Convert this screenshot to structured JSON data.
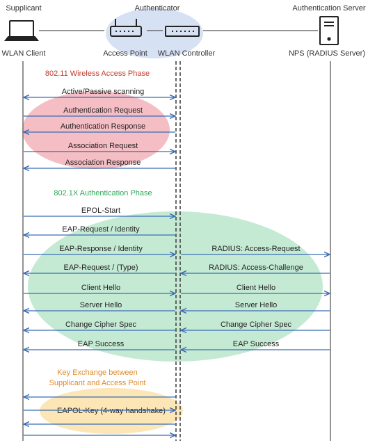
{
  "header": {
    "supplicant": "Supplicant",
    "authenticator": "Authenticator",
    "auth_server": "Authentication Server"
  },
  "devices": {
    "client": "WLAN Client",
    "ap": "Access Point",
    "controller": "WLAN Controller",
    "nps": "NPS (RADIUS Server)"
  },
  "colors": {
    "arrow": "#3b6db3",
    "phase1_title": "#c0392b",
    "phase1_fill": "#ef9aa4",
    "phase2_title": "#2ea85a",
    "phase2_fill": "#9fdcb7",
    "phase3_title": "#e08a2a",
    "phase3_fill": "#fbdc96",
    "auth_fill": "#c9d7f0"
  },
  "phases": [
    {
      "title": "802.11 Wireless Access Phase",
      "messages": [
        {
          "label": "Active/Passive scanning",
          "dir": "both"
        },
        {
          "label": "Authentication Request",
          "dir": "right"
        },
        {
          "label": "Authentication Response",
          "dir": "left"
        },
        {
          "label": "Association Request",
          "dir": "right"
        },
        {
          "label": "Association Response",
          "dir": "left"
        }
      ]
    },
    {
      "title": "802.1X Authentication Phase",
      "messages": [
        {
          "label": "EPOL-Start",
          "dir": "right",
          "right_label": "",
          "right_dir": ""
        },
        {
          "label": "EAP-Request / Identity",
          "dir": "left",
          "right_label": "",
          "right_dir": ""
        },
        {
          "label": "EAP-Response / Identity",
          "dir": "right",
          "right_label": "RADIUS: Access-Request",
          "right_dir": "right"
        },
        {
          "label": "EAP-Request / (Type)",
          "dir": "left",
          "right_label": "RADIUS: Access-Challenge",
          "right_dir": "left"
        },
        {
          "label": "Client Hello",
          "dir": "right",
          "right_label": "Client Hello",
          "right_dir": "right"
        },
        {
          "label": "Server Hello",
          "dir": "left",
          "right_label": "Server Hello",
          "right_dir": "left"
        },
        {
          "label": "Change Cipher Spec",
          "dir": "left",
          "right_label": "Change Cipher Spec",
          "right_dir": "left"
        },
        {
          "label": "EAP Success",
          "dir": "left",
          "right_label": "EAP Success",
          "right_dir": "left"
        }
      ]
    },
    {
      "title_line1": "Key Exchange between",
      "title_line2": "Supplicant and Access Point",
      "label": "EAPOL-Key (4-way handshake)",
      "arrows": [
        "left",
        "right",
        "left",
        "right"
      ]
    }
  ]
}
